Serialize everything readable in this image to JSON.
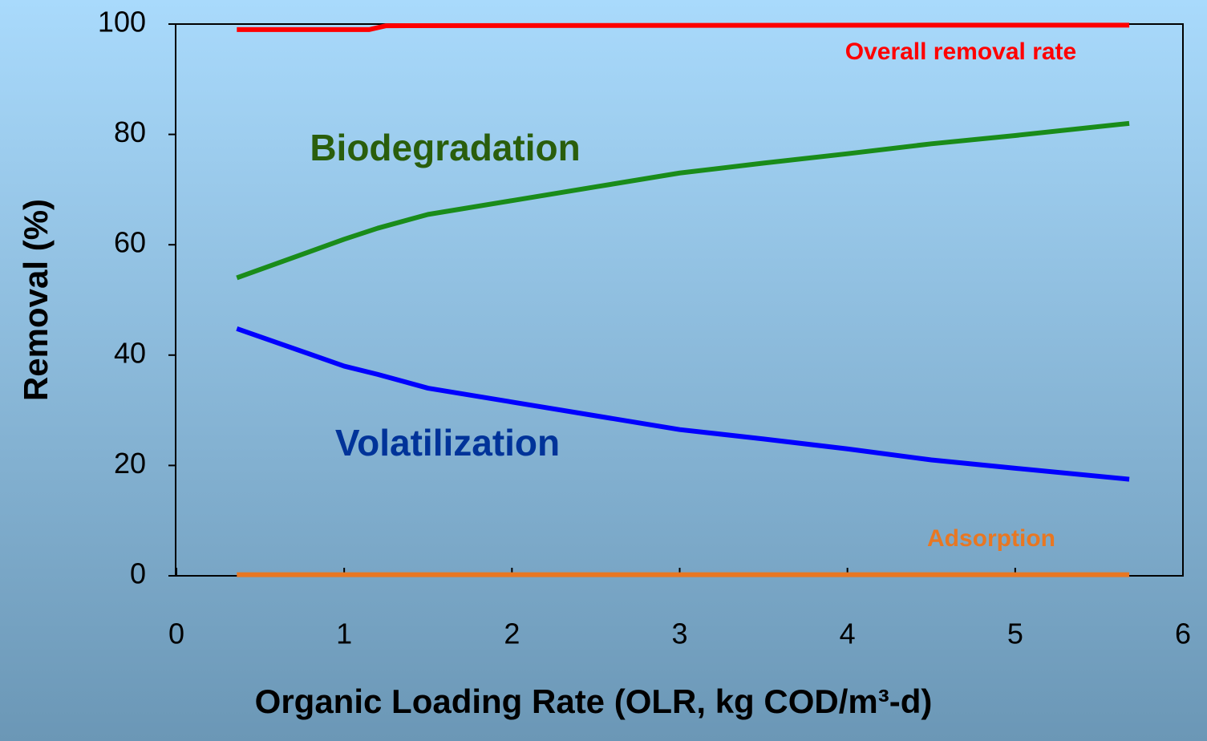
{
  "chart_data": {
    "type": "line",
    "x_label": "Organic Loading Rate (OLR, kg COD/m³-d)",
    "y_label": "Removal (%)",
    "xlim": [
      0,
      6
    ],
    "xticks": [
      0,
      1,
      2,
      3,
      4,
      5,
      6
    ],
    "ylim": [
      0,
      100
    ],
    "yticks": [
      0,
      20,
      40,
      60,
      80,
      100
    ],
    "series": [
      {
        "name": "Overall removal rate",
        "color": "#ff0000",
        "label_color": "#ff0000",
        "x": [
          0.36,
          1.15,
          1.25,
          4.5,
          5.68
        ],
        "values": [
          99,
          99,
          99.7,
          99.8,
          99.8
        ]
      },
      {
        "name": "Biodegradation",
        "color": "#1a8c1a",
        "label_color": "#2a5e0c",
        "x": [
          0.36,
          1.0,
          1.2,
          1.5,
          2.0,
          2.5,
          3.0,
          3.5,
          4.0,
          4.5,
          5.0,
          5.68
        ],
        "values": [
          54,
          61,
          63,
          65.5,
          68,
          70.5,
          73,
          74.8,
          76.5,
          78.3,
          79.8,
          82
        ]
      },
      {
        "name": "Volatilization",
        "color": "#0000ff",
        "label_color": "#003399",
        "x": [
          0.36,
          1.0,
          1.2,
          1.5,
          2.0,
          2.5,
          3.0,
          3.5,
          4.0,
          4.5,
          5.0,
          5.68
        ],
        "values": [
          44.8,
          38,
          36.5,
          34,
          31.5,
          29,
          26.5,
          24.8,
          23,
          21,
          19.5,
          17.5
        ]
      },
      {
        "name": "Adsorption",
        "color": "#e87722",
        "label_color": "#e87722",
        "x": [
          0.36,
          5.68
        ],
        "values": [
          0.2,
          0.2
        ]
      }
    ]
  }
}
